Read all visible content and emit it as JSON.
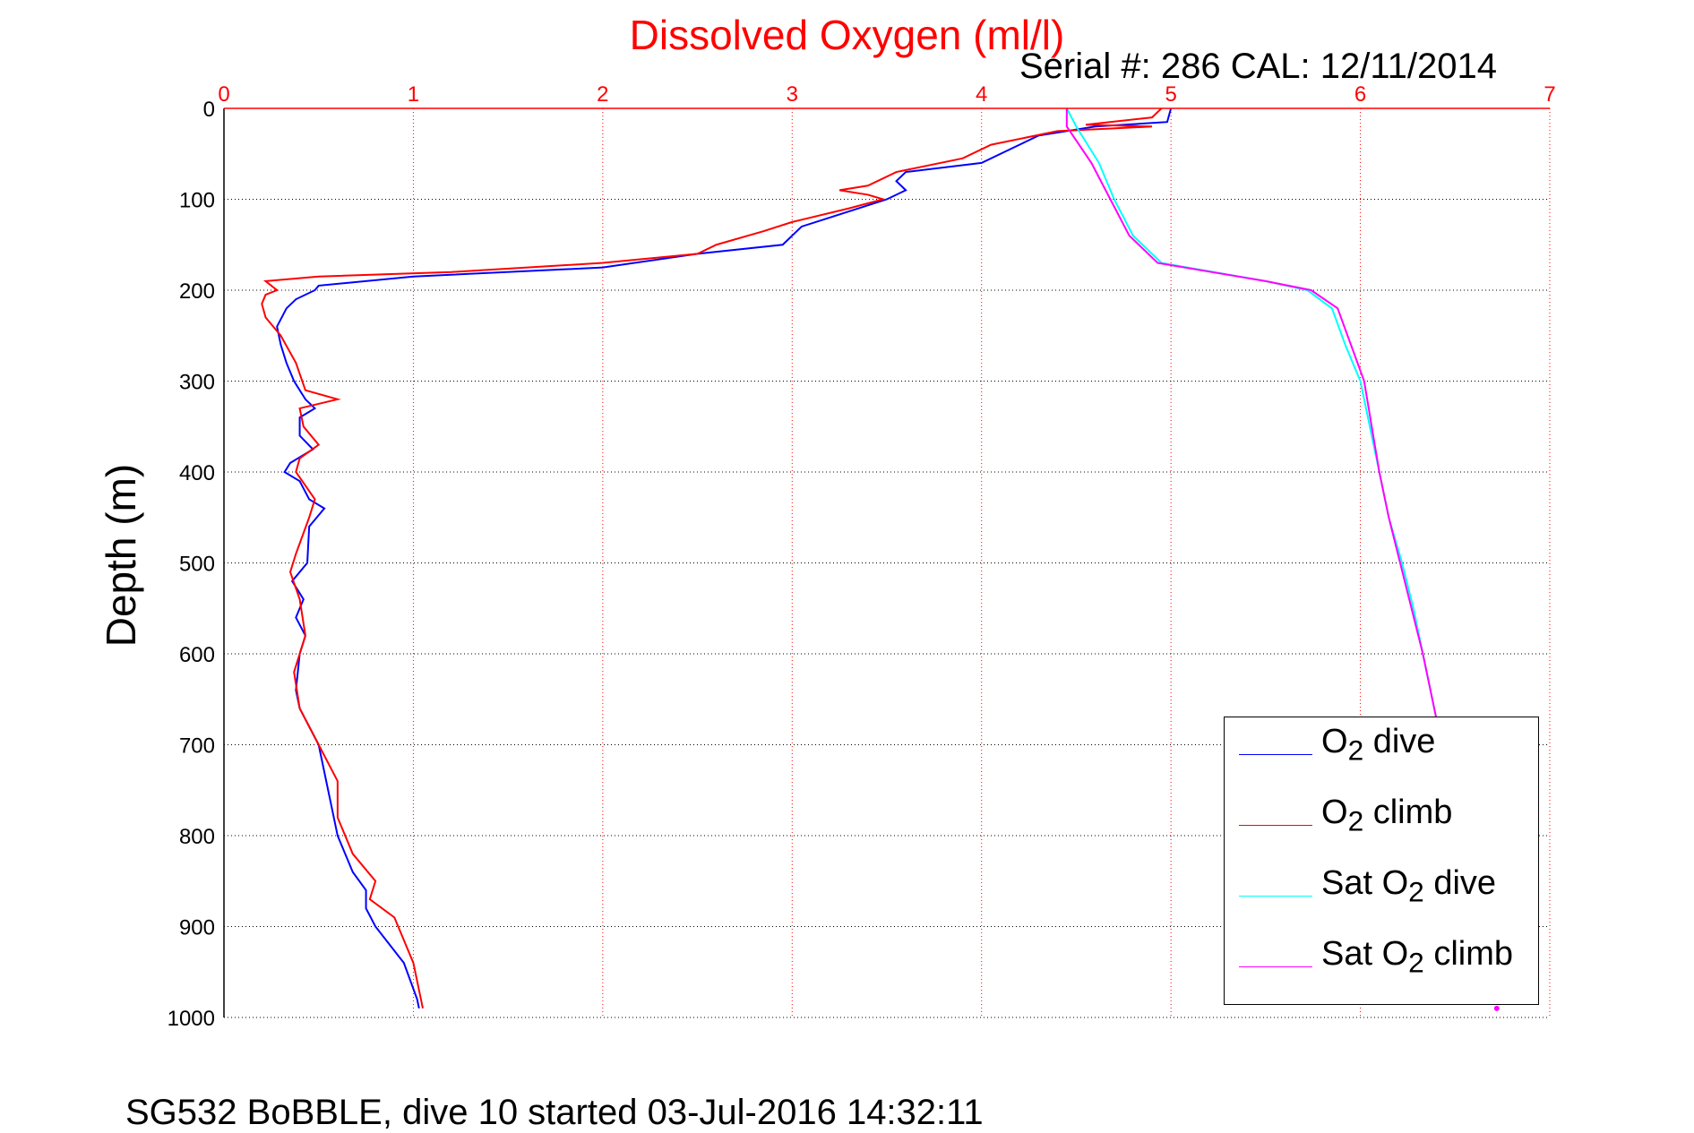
{
  "chart_data": {
    "type": "line",
    "title": "Dissolved Oxygen (ml/l)",
    "subtitle": "Serial #: 286  CAL: 12/11/2014",
    "xlabel": "",
    "ylabel": "Depth (m)",
    "footer": "SG532 BoBBLE, dive 10 started 03-Jul-2016 14:32:11",
    "xlim": [
      0,
      7
    ],
    "ylim": [
      1000,
      0
    ],
    "xticks": [
      "0",
      "1",
      "2",
      "3",
      "4",
      "5",
      "6",
      "7"
    ],
    "yticks": [
      "0",
      "100",
      "200",
      "300",
      "400",
      "500",
      "600",
      "700",
      "800",
      "900",
      "1000"
    ],
    "grid": true,
    "legend_position": "bottom-right",
    "series": [
      {
        "name": "O2 dive",
        "label_pre": "O",
        "label_sub": "2",
        "label_post": " dive",
        "color": "#0000ff",
        "points": [
          [
            5.0,
            0
          ],
          [
            4.98,
            15
          ],
          [
            4.6,
            20
          ],
          [
            4.3,
            30
          ],
          [
            4.2,
            40
          ],
          [
            4.0,
            60
          ],
          [
            3.6,
            70
          ],
          [
            3.55,
            80
          ],
          [
            3.6,
            90
          ],
          [
            3.5,
            100
          ],
          [
            3.2,
            120
          ],
          [
            3.05,
            130
          ],
          [
            2.95,
            150
          ],
          [
            2.5,
            160
          ],
          [
            2.0,
            175
          ],
          [
            1.0,
            185
          ],
          [
            0.5,
            195
          ],
          [
            0.48,
            200
          ],
          [
            0.38,
            210
          ],
          [
            0.33,
            220
          ],
          [
            0.28,
            240
          ],
          [
            0.3,
            260
          ],
          [
            0.33,
            280
          ],
          [
            0.37,
            300
          ],
          [
            0.43,
            320
          ],
          [
            0.48,
            330
          ],
          [
            0.4,
            340
          ],
          [
            0.4,
            360
          ],
          [
            0.47,
            375
          ],
          [
            0.35,
            390
          ],
          [
            0.32,
            400
          ],
          [
            0.4,
            410
          ],
          [
            0.45,
            430
          ],
          [
            0.53,
            440
          ],
          [
            0.45,
            460
          ],
          [
            0.44,
            500
          ],
          [
            0.36,
            520
          ],
          [
            0.42,
            540
          ],
          [
            0.38,
            560
          ],
          [
            0.43,
            580
          ],
          [
            0.4,
            600
          ],
          [
            0.38,
            640
          ],
          [
            0.4,
            660
          ],
          [
            0.5,
            700
          ],
          [
            0.55,
            750
          ],
          [
            0.6,
            800
          ],
          [
            0.68,
            840
          ],
          [
            0.75,
            860
          ],
          [
            0.75,
            880
          ],
          [
            0.8,
            900
          ],
          [
            0.95,
            940
          ],
          [
            1.02,
            980
          ],
          [
            1.03,
            990
          ]
        ]
      },
      {
        "name": "O2 climb",
        "label_pre": "O",
        "label_sub": "2",
        "label_post": " climb",
        "color": "#ff0000",
        "points": [
          [
            4.95,
            0
          ],
          [
            4.9,
            10
          ],
          [
            4.55,
            18
          ],
          [
            4.9,
            20
          ],
          [
            4.4,
            25
          ],
          [
            4.05,
            40
          ],
          [
            3.9,
            55
          ],
          [
            3.55,
            70
          ],
          [
            3.4,
            85
          ],
          [
            3.25,
            90
          ],
          [
            3.4,
            95
          ],
          [
            3.48,
            100
          ],
          [
            3.3,
            110
          ],
          [
            3.0,
            125
          ],
          [
            2.85,
            135
          ],
          [
            2.6,
            150
          ],
          [
            2.5,
            160
          ],
          [
            2.0,
            170
          ],
          [
            1.2,
            180
          ],
          [
            0.5,
            185
          ],
          [
            0.22,
            190
          ],
          [
            0.28,
            200
          ],
          [
            0.22,
            205
          ],
          [
            0.2,
            215
          ],
          [
            0.22,
            230
          ],
          [
            0.3,
            250
          ],
          [
            0.38,
            280
          ],
          [
            0.43,
            310
          ],
          [
            0.6,
            320
          ],
          [
            0.4,
            330
          ],
          [
            0.42,
            350
          ],
          [
            0.5,
            370
          ],
          [
            0.4,
            385
          ],
          [
            0.38,
            400
          ],
          [
            0.48,
            430
          ],
          [
            0.45,
            450
          ],
          [
            0.38,
            490
          ],
          [
            0.35,
            510
          ],
          [
            0.4,
            540
          ],
          [
            0.43,
            580
          ],
          [
            0.37,
            620
          ],
          [
            0.4,
            660
          ],
          [
            0.5,
            700
          ],
          [
            0.6,
            740
          ],
          [
            0.6,
            780
          ],
          [
            0.68,
            820
          ],
          [
            0.8,
            850
          ],
          [
            0.77,
            870
          ],
          [
            0.9,
            890
          ],
          [
            1.0,
            940
          ],
          [
            1.05,
            990
          ]
        ]
      },
      {
        "name": "Sat O2 dive",
        "label_pre": "Sat O",
        "label_sub": "2",
        "label_post": " dive",
        "color": "#00ffff",
        "points": [
          [
            4.45,
            0
          ],
          [
            4.5,
            20
          ],
          [
            4.62,
            60
          ],
          [
            4.7,
            100
          ],
          [
            4.8,
            140
          ],
          [
            4.95,
            170
          ],
          [
            5.5,
            190
          ],
          [
            5.72,
            200
          ],
          [
            5.85,
            220
          ],
          [
            5.92,
            260
          ],
          [
            6.0,
            300
          ],
          [
            6.05,
            350
          ],
          [
            6.1,
            400
          ],
          [
            6.15,
            450
          ],
          [
            6.22,
            500
          ],
          [
            6.28,
            550
          ],
          [
            6.33,
            600
          ],
          [
            6.4,
            670
          ]
        ]
      },
      {
        "name": "Sat O2 climb",
        "label_pre": "Sat O",
        "label_sub": "2",
        "label_post": " climb",
        "color": "#ff00ff",
        "points": [
          [
            4.45,
            0
          ],
          [
            4.45,
            20
          ],
          [
            4.58,
            60
          ],
          [
            4.68,
            100
          ],
          [
            4.78,
            140
          ],
          [
            4.93,
            170
          ],
          [
            5.5,
            190
          ],
          [
            5.74,
            200
          ],
          [
            5.88,
            220
          ],
          [
            5.95,
            260
          ],
          [
            6.02,
            300
          ],
          [
            6.06,
            350
          ],
          [
            6.1,
            400
          ],
          [
            6.15,
            450
          ],
          [
            6.21,
            500
          ],
          [
            6.27,
            550
          ],
          [
            6.33,
            600
          ],
          [
            6.4,
            670
          ]
        ]
      }
    ],
    "extra_points": [
      {
        "series": "Sat O2 climb",
        "x": 6.72,
        "y": 990
      }
    ]
  }
}
